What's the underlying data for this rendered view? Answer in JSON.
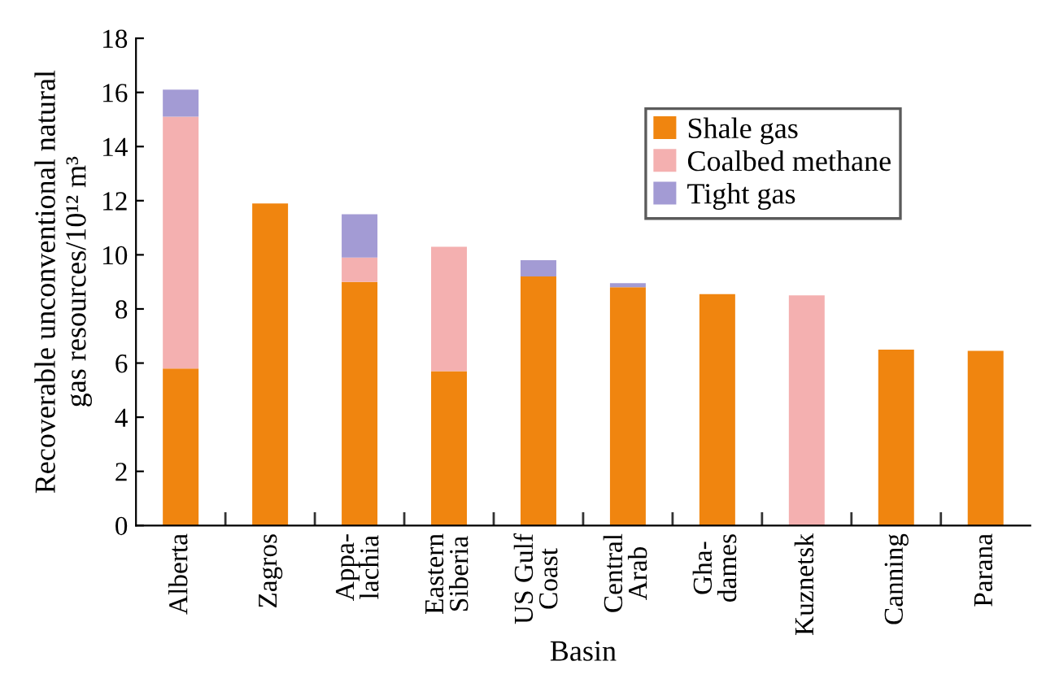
{
  "chart_data": {
    "type": "bar",
    "stacked": true,
    "xlabel": "Basin",
    "ylabel": "Recoverable unconventional natural\ngas resources/10¹² m³",
    "categories": [
      "Alberta",
      "Zagros",
      "Appa-\nlachia",
      "Eastern\nSiberia",
      "US Gulf\nCoast",
      "Central\nArab",
      "Gha-\ndames",
      "Kuznetsk",
      "Canning",
      "Parana"
    ],
    "series": [
      {
        "name": "Shale gas",
        "color": "#f0850f",
        "values": [
          5.8,
          11.9,
          9.0,
          5.7,
          9.2,
          8.8,
          8.55,
          null,
          6.5,
          6.45
        ]
      },
      {
        "name": "Coalbed methane",
        "color": "#f4b0b0",
        "values": [
          9.3,
          null,
          0.9,
          4.6,
          null,
          null,
          null,
          8.5,
          null,
          null
        ]
      },
      {
        "name": "Tight gas",
        "color": "#a39bd4",
        "values": [
          1.0,
          null,
          1.6,
          null,
          0.6,
          0.15,
          null,
          null,
          null,
          null
        ]
      }
    ],
    "ylim": [
      0,
      18
    ],
    "yticks": [
      0,
      2,
      4,
      6,
      8,
      10,
      12,
      14,
      16,
      18
    ],
    "grid": false,
    "legend": "top right"
  }
}
